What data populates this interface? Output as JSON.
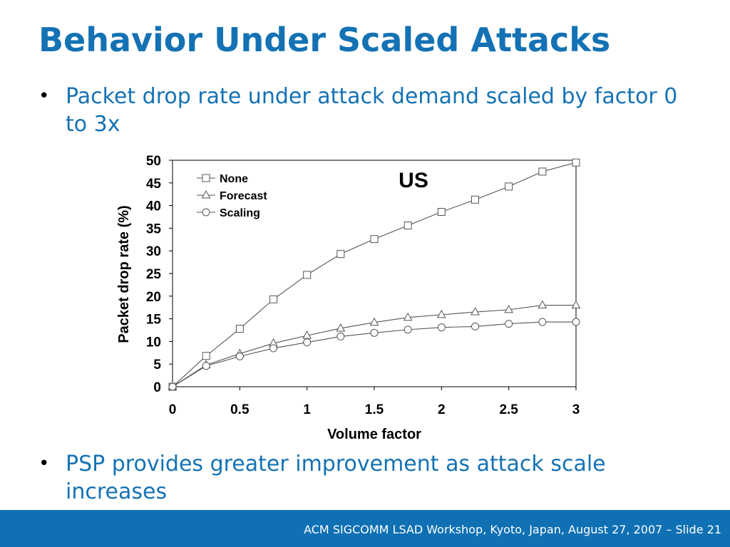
{
  "slide": {
    "title": "Behavior Under Scaled Attacks",
    "bullets": [
      "Packet drop rate under attack demand scaled by factor 0 to 3x",
      "PSP provides greater improvement as attack scale increases"
    ],
    "footer": "ACM SIGCOMM LSAD Workshop, Kyoto, Japan, August 27, 2007 – Slide 21"
  },
  "colors": {
    "title": "#1472B4",
    "bullet_text": "#1472B4",
    "footer_bg": "#0F70B3",
    "footer_text": "#FFFFFF",
    "series_line": "#555555"
  },
  "chart_data": {
    "type": "line",
    "annotation": "US",
    "xlabel": "Volume factor",
    "ylabel": "Packet drop rate (%)",
    "xlim": [
      0,
      3
    ],
    "ylim": [
      0,
      50
    ],
    "xticks": [
      0,
      0.5,
      1,
      1.5,
      2,
      2.5,
      3
    ],
    "xtick_labels": [
      "0",
      "0.5",
      "1",
      "1.5",
      "2",
      "2.5",
      "3"
    ],
    "yticks": [
      0,
      5,
      10,
      15,
      20,
      25,
      30,
      35,
      40,
      45,
      50
    ],
    "ytick_labels": [
      "0",
      "5",
      "10",
      "15",
      "20",
      "25",
      "30",
      "35",
      "40",
      "45",
      "50"
    ],
    "grid": false,
    "legend_position": "top-left",
    "x": [
      0,
      0.25,
      0.5,
      0.75,
      1,
      1.25,
      1.5,
      1.75,
      2,
      2.25,
      2.5,
      2.75,
      3
    ],
    "series": [
      {
        "name": "None",
        "marker": "square",
        "values": [
          0,
          6.8,
          12.8,
          19.3,
          24.7,
          29.3,
          32.6,
          35.6,
          38.6,
          41.3,
          44.2,
          47.5,
          49.5
        ]
      },
      {
        "name": "Forecast",
        "marker": "triangle",
        "values": [
          0,
          4.8,
          7.3,
          9.6,
          11.3,
          12.9,
          14.2,
          15.3,
          15.9,
          16.5,
          17.0,
          18.0,
          18.0
        ]
      },
      {
        "name": "Scaling",
        "marker": "circle",
        "values": [
          0,
          4.6,
          6.7,
          8.5,
          9.8,
          11.1,
          11.9,
          12.6,
          13.1,
          13.3,
          13.9,
          14.3,
          14.3
        ]
      }
    ]
  }
}
